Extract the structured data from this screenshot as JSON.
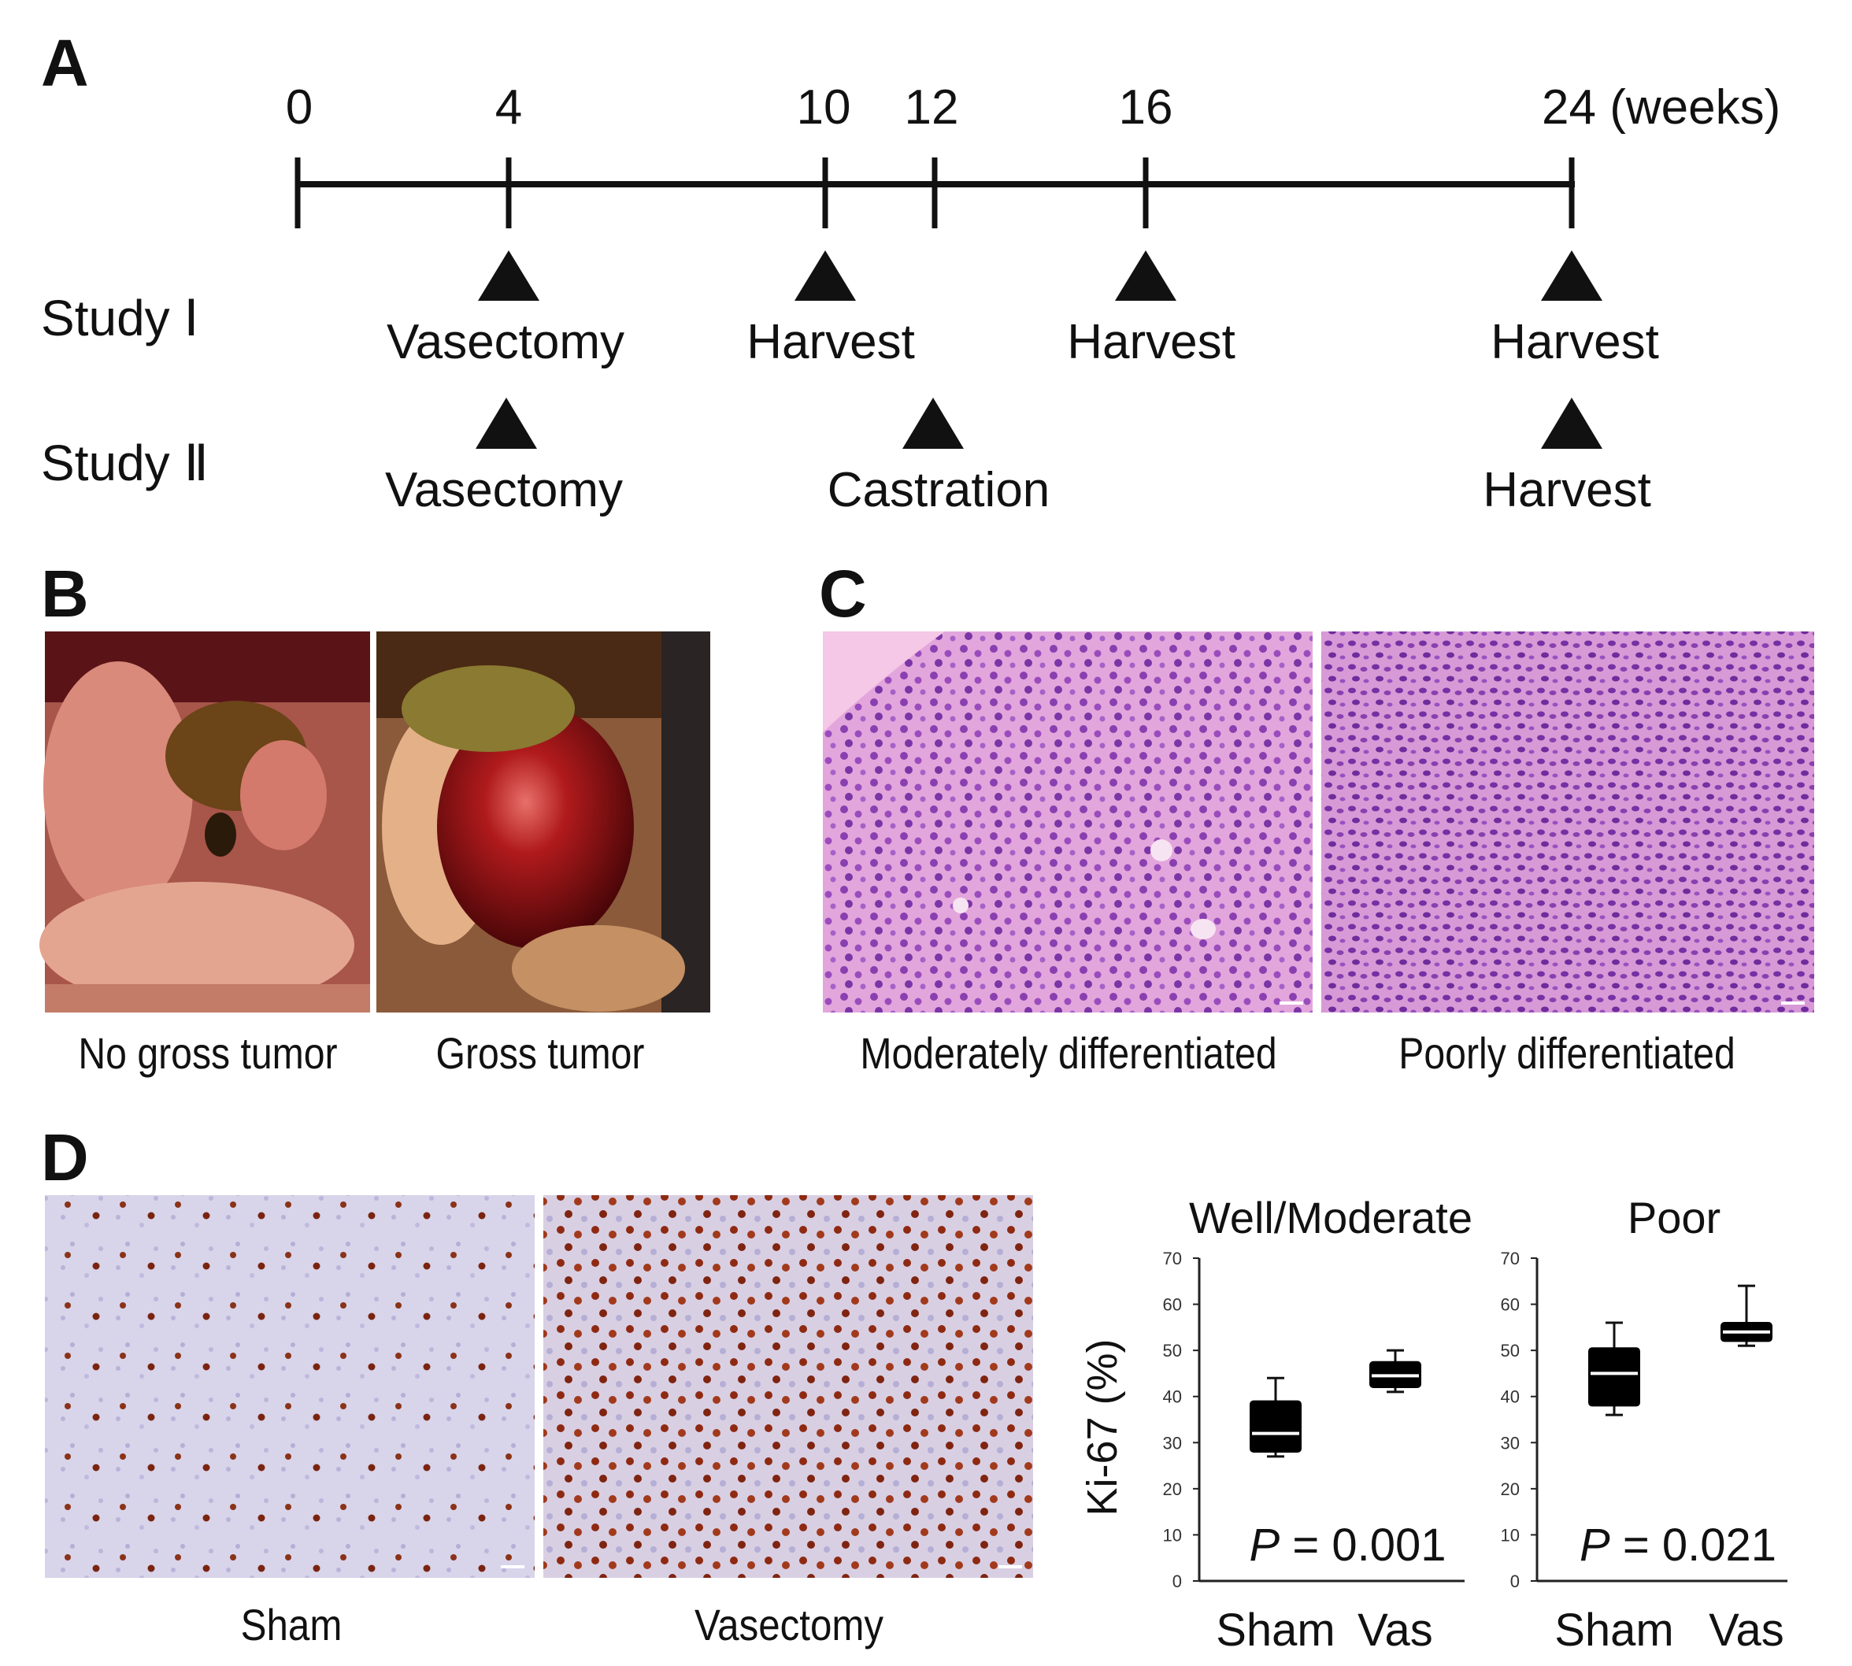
{
  "panels": {
    "a": "A",
    "b": "B",
    "c": "C",
    "d": "D"
  },
  "timeline": {
    "ticks": [
      "0",
      "4",
      "10",
      "12",
      "16",
      "24 (weeks)"
    ],
    "study1": {
      "label": "Study Ⅰ",
      "events": [
        "Vasectomy",
        "Harvest",
        "Harvest",
        "Harvest"
      ]
    },
    "study2": {
      "label": "Study Ⅱ",
      "events": [
        "Vasectomy",
        "Castration",
        "Harvest"
      ]
    }
  },
  "panel_b": {
    "captions": [
      "No gross tumor",
      "Gross tumor"
    ]
  },
  "panel_c": {
    "captions": [
      "Moderately differentiated",
      "Poorly differentiated"
    ]
  },
  "panel_d": {
    "captions": [
      "Sham",
      "Vasectomy"
    ]
  },
  "chart_data": [
    {
      "type": "box",
      "title": "Well/Moderate",
      "ylabel": "Ki-67 (%)",
      "ylim": [
        0,
        70
      ],
      "yticks": [
        "0",
        "10",
        "20",
        "30",
        "40",
        "50",
        "60",
        "70"
      ],
      "categories": [
        "Sham",
        "Vas"
      ],
      "boxes": [
        {
          "min": 27,
          "q1": 28,
          "median": 32,
          "q3": 39,
          "max": 44
        },
        {
          "min": 41,
          "q1": 42,
          "median": 44.5,
          "q3": 47.5,
          "max": 50
        }
      ],
      "annotation": {
        "p_label": "P",
        "p_value": " = 0.001"
      }
    },
    {
      "type": "box",
      "title": "Poor",
      "ylim": [
        0,
        70
      ],
      "yticks": [
        "0",
        "10",
        "20",
        "30",
        "40",
        "50",
        "60",
        "70"
      ],
      "categories": [
        "Sham",
        "Vas"
      ],
      "boxes": [
        {
          "min": 36,
          "q1": 38,
          "median": 45,
          "q3": 50.5,
          "max": 56
        },
        {
          "min": 51,
          "q1": 52,
          "median": 54,
          "q3": 56,
          "max": 64
        }
      ],
      "annotation": {
        "p_label": "P",
        "p_value": " = 0.021"
      }
    }
  ]
}
